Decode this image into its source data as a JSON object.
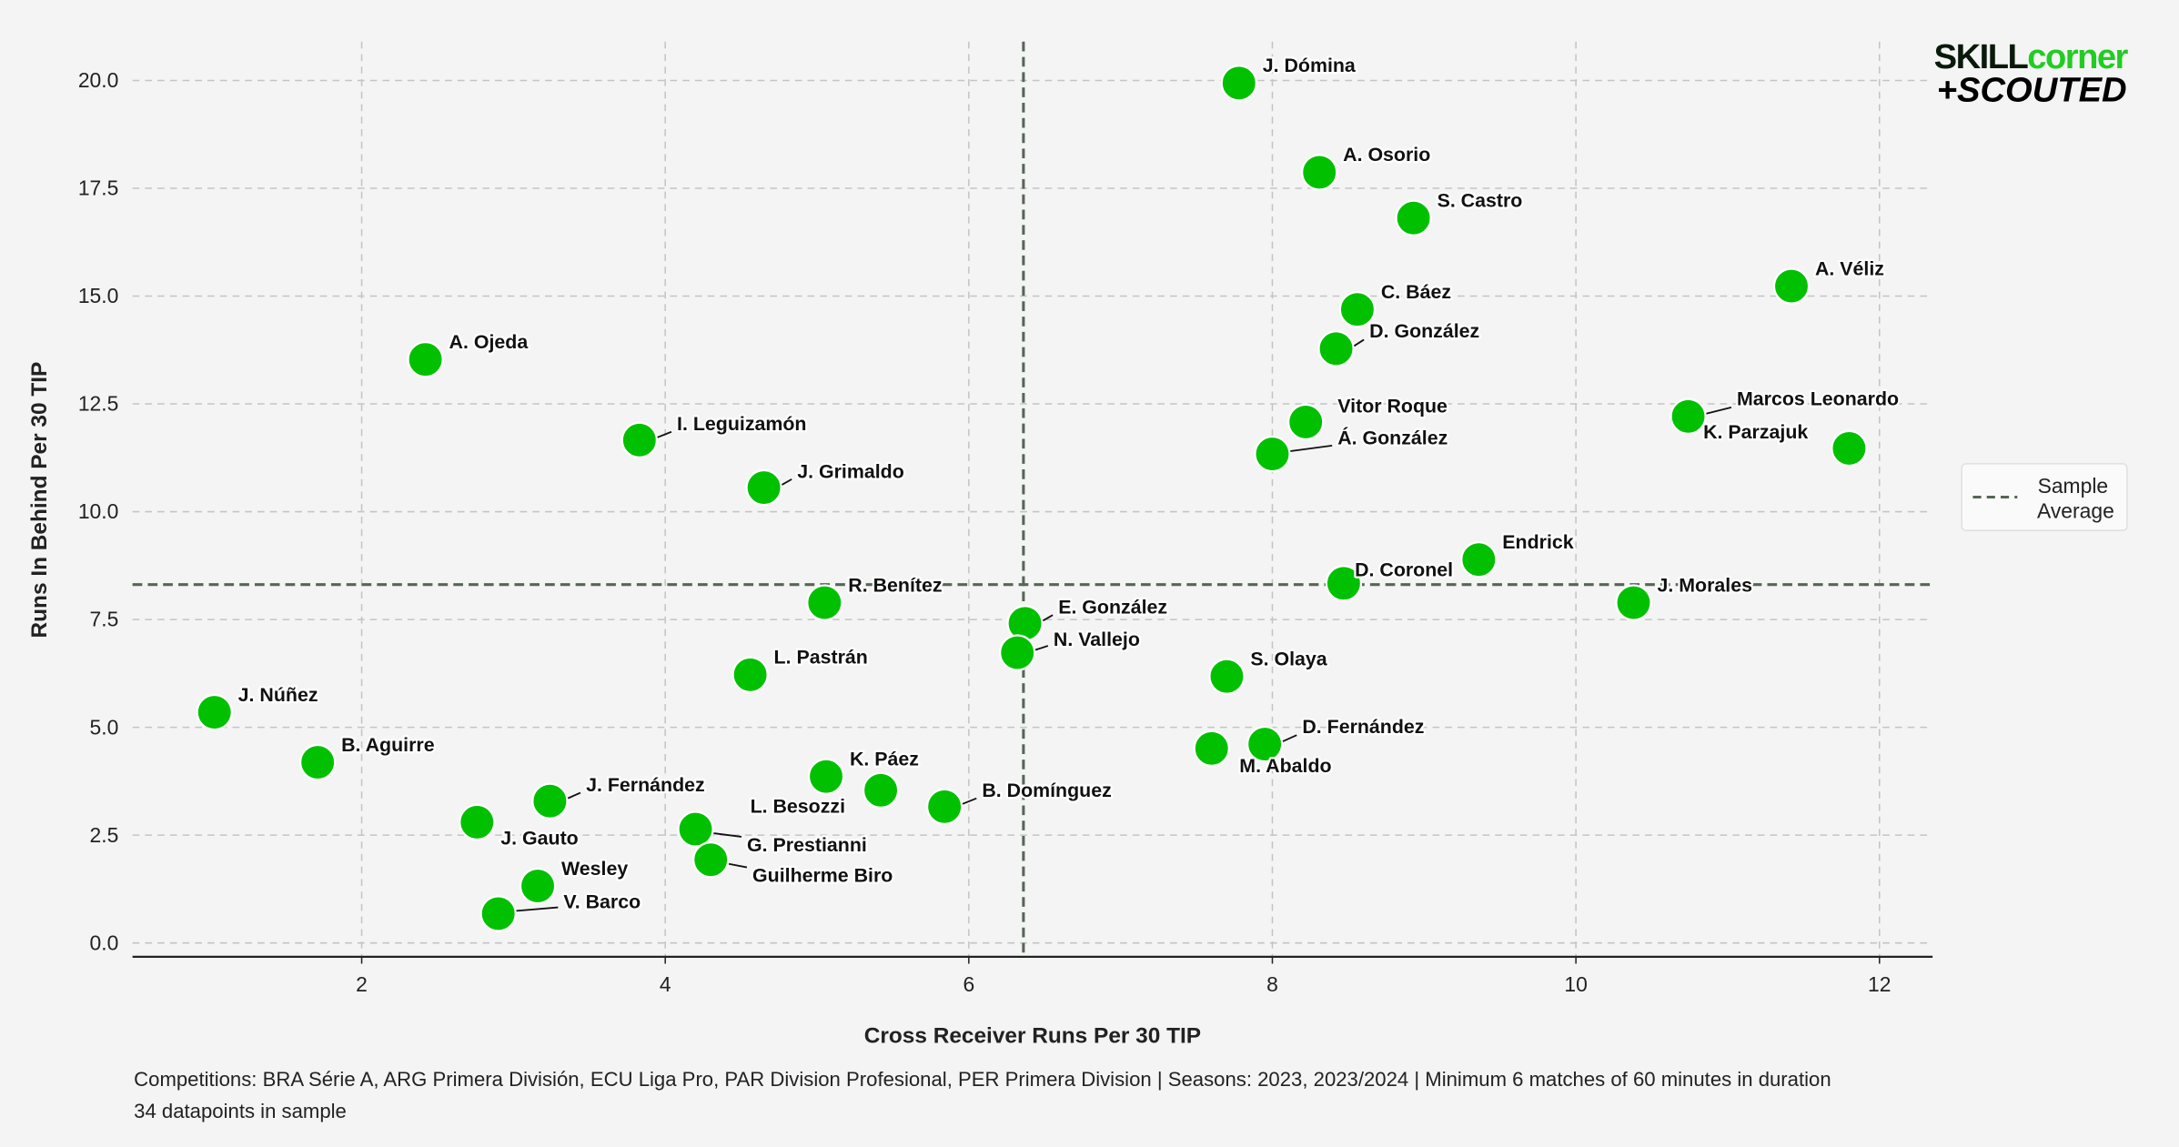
{
  "chart_data": {
    "type": "scatter",
    "xlabel": "Cross Receiver Runs Per 30 TIP",
    "ylabel": "Runs In Behind Per 30 TIP",
    "xlim": [
      0.49,
      12.35
    ],
    "ylim": [
      -0.32,
      20.9
    ],
    "xticks": [
      2,
      4,
      6,
      8,
      10,
      12
    ],
    "yticks": [
      0.0,
      2.5,
      5.0,
      7.5,
      10.0,
      12.5,
      15.0,
      17.5,
      20.0
    ],
    "grid": true,
    "point_color": "#00c000",
    "reference_lines": {
      "x": 6.36,
      "y": 8.31,
      "name": "Sample Average",
      "color": "#556655"
    },
    "legend": {
      "placement": "right",
      "entries": [
        "Sample",
        "Average"
      ]
    },
    "points": [
      {
        "name": "J. Dómina",
        "x": 7.78,
        "y": 19.94
      },
      {
        "name": "A. Osorio",
        "x": 8.31,
        "y": 17.87
      },
      {
        "name": "S. Castro",
        "x": 8.93,
        "y": 16.81
      },
      {
        "name": "A. Véliz",
        "x": 11.42,
        "y": 15.23
      },
      {
        "name": "C. Báez",
        "x": 8.56,
        "y": 14.69
      },
      {
        "name": "D. González",
        "x": 8.42,
        "y": 13.78
      },
      {
        "name": "A. Ojeda",
        "x": 2.42,
        "y": 13.53
      },
      {
        "name": "Marcos Leonardo",
        "x": 10.74,
        "y": 12.21
      },
      {
        "name": "Vitor Roque",
        "x": 8.22,
        "y": 12.08
      },
      {
        "name": "K. Parzajuk",
        "x": 11.8,
        "y": 11.47
      },
      {
        "name": "Á. González",
        "x": 8.0,
        "y": 11.34
      },
      {
        "name": "I. Leguizamón",
        "x": 3.83,
        "y": 11.66
      },
      {
        "name": "J. Grimaldo",
        "x": 4.65,
        "y": 10.56
      },
      {
        "name": "Endrick",
        "x": 9.36,
        "y": 8.89
      },
      {
        "name": "D. Coronel",
        "x": 8.47,
        "y": 8.34
      },
      {
        "name": "R. Benítez",
        "x": 5.05,
        "y": 7.89
      },
      {
        "name": "J. Morales",
        "x": 10.38,
        "y": 7.89
      },
      {
        "name": "E. González",
        "x": 6.37,
        "y": 7.41
      },
      {
        "name": "N. Vallejo",
        "x": 6.32,
        "y": 6.73
      },
      {
        "name": "S. Olaya",
        "x": 7.7,
        "y": 6.18
      },
      {
        "name": "L. Pastrán",
        "x": 4.56,
        "y": 6.22
      },
      {
        "name": "J. Núñez",
        "x": 1.03,
        "y": 5.35
      },
      {
        "name": "D. Fernández",
        "x": 7.95,
        "y": 4.61
      },
      {
        "name": "M. Abaldo",
        "x": 7.6,
        "y": 4.51
      },
      {
        "name": "B. Aguirre",
        "x": 1.71,
        "y": 4.19
      },
      {
        "name": "K. Páez",
        "x": 5.06,
        "y": 3.86
      },
      {
        "name": "L. Besozzi",
        "x": 5.42,
        "y": 3.54
      },
      {
        "name": "J. Fernández",
        "x": 3.24,
        "y": 3.29
      },
      {
        "name": "B. Domínguez",
        "x": 5.84,
        "y": 3.16
      },
      {
        "name": "J. Gauto",
        "x": 2.76,
        "y": 2.8
      },
      {
        "name": "G. Prestianni",
        "x": 4.2,
        "y": 2.64
      },
      {
        "name": "Guilherme Biro",
        "x": 4.3,
        "y": 1.93
      },
      {
        "name": "Wesley",
        "x": 3.16,
        "y": 1.32
      },
      {
        "name": "V. Barco",
        "x": 2.9,
        "y": 0.68
      }
    ]
  },
  "logo": {
    "line1_a": "SKILL",
    "line1_b": "corner",
    "line2": "+SCOUTED"
  },
  "footer": {
    "line1": "Competitions: BRA Série A, ARG Primera División, ECU Liga Pro, PAR Division Profesional, PER Primera Division | Seasons: 2023, 2023/2024 | Minimum 6 matches of 60 minutes in duration",
    "line2": "34 datapoints in sample"
  }
}
